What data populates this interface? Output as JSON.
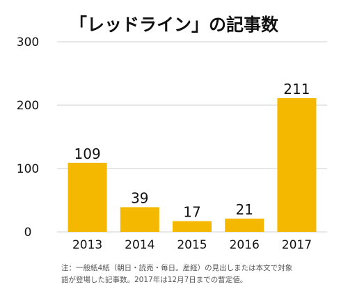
{
  "chart_data": {
    "type": "bar",
    "title": "「レッドライン」の記事数",
    "categories": [
      "2013",
      "2014",
      "2015",
      "2016",
      "2017"
    ],
    "values": [
      109,
      39,
      17,
      21,
      211
    ],
    "data_labels": [
      "109",
      "39",
      "17",
      "21",
      "211"
    ],
    "y_ticks": [
      0,
      100,
      200,
      300
    ],
    "ylim": [
      0,
      300
    ],
    "xlabel": "",
    "ylabel": "",
    "grid": true,
    "bar_color": "#F5B800"
  },
  "note": {
    "line1": "注：一般紙4紙（朝日・読売・毎日。産経）の見出しまたは本文で対象",
    "line2": "語が登場した記事数。2017年は12月7日までの暫定値。"
  }
}
